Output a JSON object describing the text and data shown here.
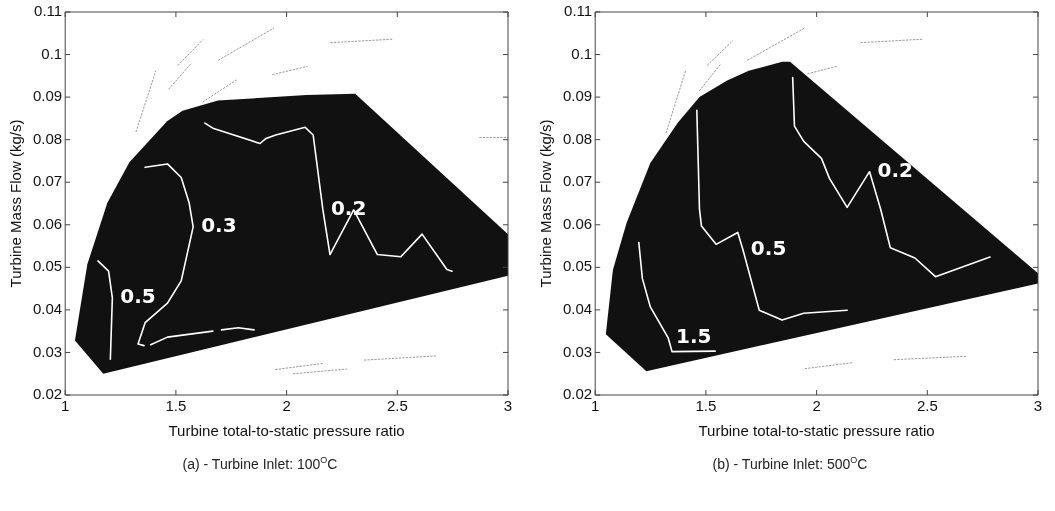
{
  "chart_data": [
    {
      "type": "line",
      "xlabel": "Turbine total-to-static pressure ratio",
      "ylabel": "Turbine Mass Flow (kg/s)",
      "xlim": [
        1,
        3
      ],
      "xticks": [
        1,
        1.5,
        2,
        2.5,
        3
      ],
      "ylim": [
        0.02,
        0.11
      ],
      "yticks": [
        0.02,
        0.03,
        0.04,
        0.05,
        0.06,
        0.07,
        0.08,
        0.09,
        0.1,
        0.11
      ],
      "grid": false,
      "legend": false,
      "marker": "none",
      "series": [
        {
          "type": "area",
          "color": "#111111",
          "x": [
            1.044,
            1.172,
            3,
            3,
            2.31,
            2.09,
            1.69,
            1.53,
            1.46,
            1.29,
            1.19,
            1.1,
            1.044
          ],
          "values": [
            0.0328,
            0.025,
            0.048,
            0.0578,
            0.0908,
            0.0905,
            0.0892,
            0.0868,
            0.0843,
            0.0747,
            0.0651,
            0.0507,
            0.0328
          ]
        },
        {
          "name": "0.5",
          "color": "#ffffff",
          "x": [
            1.148,
            1.196,
            1.213,
            1.204
          ],
          "values": [
            0.0515,
            0.0491,
            0.0428,
            0.0284
          ]
        },
        {
          "name": "0.3",
          "color": "#ffffff",
          "x": [
            1.356,
            1.329,
            1.361,
            1.462,
            1.524,
            1.578,
            1.56,
            1.524,
            1.462,
            1.361
          ],
          "values": [
            0.0316,
            0.032,
            0.037,
            0.0416,
            0.0468,
            0.0595,
            0.0651,
            0.0711,
            0.0743,
            0.0735
          ]
        },
        {
          "color": "#ffffff",
          "x": [
            1.386,
            1.462,
            1.667
          ],
          "values": [
            0.0318,
            0.0336,
            0.035
          ]
        },
        {
          "color": "#ffffff",
          "x": [
            1.706,
            1.782,
            1.853
          ],
          "values": [
            0.0353,
            0.0358,
            0.0353
          ]
        },
        {
          "name": "0.2",
          "color": "#ffffff",
          "x": [
            1.631,
            1.667,
            1.88,
            1.907,
            1.951,
            2.084,
            2.12,
            2.164,
            2.196,
            2.303,
            2.41,
            2.516,
            2.612,
            2.724,
            2.747
          ],
          "values": [
            0.0839,
            0.0827,
            0.0791,
            0.0803,
            0.0811,
            0.0829,
            0.0811,
            0.0635,
            0.053,
            0.0635,
            0.053,
            0.0525,
            0.0578,
            0.0495,
            0.0491
          ]
        },
        {
          "color": "#999999",
          "line_style": "dotted",
          "x": [
            1.32,
            1.409
          ],
          "values": [
            0.0819,
            0.0961
          ]
        },
        {
          "color": "#999999",
          "line_style": "dotted",
          "x": [
            1.468,
            1.569
          ],
          "values": [
            0.0919,
            0.0979
          ]
        },
        {
          "color": "#999999",
          "line_style": "dotted",
          "x": [
            1.51,
            1.622
          ],
          "values": [
            0.0975,
            0.1035
          ]
        },
        {
          "color": "#999999",
          "line_style": "dotted",
          "x": [
            1.693,
            1.942
          ],
          "values": [
            0.0987,
            0.1062
          ]
        },
        {
          "color": "#999999",
          "line_style": "dotted",
          "x": [
            1.622,
            1.773
          ],
          "values": [
            0.0889,
            0.094
          ]
        },
        {
          "color": "#999999",
          "line_style": "dotted",
          "x": [
            1.937,
            2.093
          ],
          "values": [
            0.0953,
            0.0972
          ]
        },
        {
          "color": "#999999",
          "line_style": "dotted",
          "x": [
            2.2,
            2.476
          ],
          "values": [
            0.1028,
            0.1036
          ]
        },
        {
          "color": "#999999",
          "line_style": "dotted",
          "x": [
            1.951,
            2.164
          ],
          "values": [
            0.026,
            0.0274
          ]
        },
        {
          "color": "#999999",
          "line_style": "dotted",
          "x": [
            2.031,
            2.271
          ],
          "values": [
            0.025,
            0.0261
          ]
        },
        {
          "color": "#999999",
          "line_style": "dotted",
          "x": [
            2.351,
            2.68
          ],
          "values": [
            0.0282,
            0.0292
          ]
        },
        {
          "color": "#999999",
          "line_style": "dotted",
          "x": [
            2.872,
            3
          ],
          "values": [
            0.0805,
            0.0805
          ]
        }
      ],
      "annotations": [
        "(a) - Turbine Inlet: 100$^{O}$C"
      ]
    },
    {
      "type": "line",
      "xlabel": "Turbine total-to-static pressure ratio",
      "ylabel": "Turbine Mass Flow (kg/s)",
      "xlim": [
        1,
        3
      ],
      "xticks": [
        1,
        1.5,
        2,
        2.5,
        3
      ],
      "ylim": [
        0.02,
        0.11
      ],
      "yticks": [
        0.02,
        0.03,
        0.04,
        0.05,
        0.06,
        0.07,
        0.08,
        0.09,
        0.1,
        0.11
      ],
      "grid": false,
      "legend": false,
      "marker": "none",
      "series": [
        {
          "type": "area",
          "color": "#111111",
          "x": [
            1.048,
            1.231,
            3,
            3,
            1.88,
            1.845,
            1.693,
            1.596,
            1.471,
            1.373,
            1.249,
            1.142,
            1.08,
            1.048
          ],
          "values": [
            0.0343,
            0.0256,
            0.0462,
            0.0486,
            0.0983,
            0.0983,
            0.0962,
            0.0939,
            0.09,
            0.084,
            0.0745,
            0.0605,
            0.0494,
            0.0343
          ]
        },
        {
          "name": "1.5",
          "color": "#ffffff",
          "x": [
            1.197,
            1.213,
            1.249,
            1.329,
            1.347,
            1.542
          ],
          "values": [
            0.0558,
            0.0474,
            0.0407,
            0.0335,
            0.0302,
            0.0303
          ]
        },
        {
          "name": "0.5",
          "color": "#ffffff",
          "x": [
            1.459,
            1.471,
            1.48,
            1.546,
            1.644,
            1.667,
            1.741,
            1.844,
            1.942,
            2.138
          ],
          "values": [
            0.0869,
            0.0637,
            0.0597,
            0.0554,
            0.0582,
            0.0542,
            0.0399,
            0.0376,
            0.0392,
            0.0399
          ]
        },
        {
          "name": "0.2",
          "color": "#ffffff",
          "x": [
            1.892,
            1.9,
            1.942,
            2.022,
            2.058,
            2.138,
            2.239,
            2.289,
            2.333,
            2.444,
            2.537,
            2.783
          ],
          "values": [
            0.0946,
            0.0832,
            0.0796,
            0.0756,
            0.0709,
            0.0641,
            0.0725,
            0.0637,
            0.0546,
            0.0522,
            0.0478,
            0.0524
          ]
        },
        {
          "color": "#999999",
          "line_style": "dotted",
          "x": [
            1.32,
            1.409
          ],
          "values": [
            0.0816,
            0.0963
          ]
        },
        {
          "color": "#999999",
          "line_style": "dotted",
          "x": [
            1.471,
            1.569
          ],
          "values": [
            0.0915,
            0.0979
          ]
        },
        {
          "color": "#999999",
          "line_style": "dotted",
          "x": [
            1.507,
            1.622
          ],
          "values": [
            0.0975,
            0.1033
          ]
        },
        {
          "color": "#999999",
          "line_style": "dotted",
          "x": [
            1.689,
            1.948
          ],
          "values": [
            0.0987,
            0.1063
          ]
        },
        {
          "color": "#999999",
          "line_style": "dotted",
          "x": [
            1.96,
            2.097
          ],
          "values": [
            0.0955,
            0.0973
          ]
        },
        {
          "color": "#999999",
          "line_style": "dotted",
          "x": [
            2.2,
            2.476
          ],
          "values": [
            0.1028,
            0.1036
          ]
        },
        {
          "color": "#999999",
          "line_style": "dotted",
          "x": [
            1.948,
            2.164
          ],
          "values": [
            0.0262,
            0.0276
          ]
        },
        {
          "color": "#999999",
          "line_style": "dotted",
          "x": [
            2.351,
            2.68
          ],
          "values": [
            0.0283,
            0.0291
          ]
        }
      ],
      "annotations": [
        "(b) - Turbine Inlet: 500$^{O}$C"
      ]
    }
  ]
}
